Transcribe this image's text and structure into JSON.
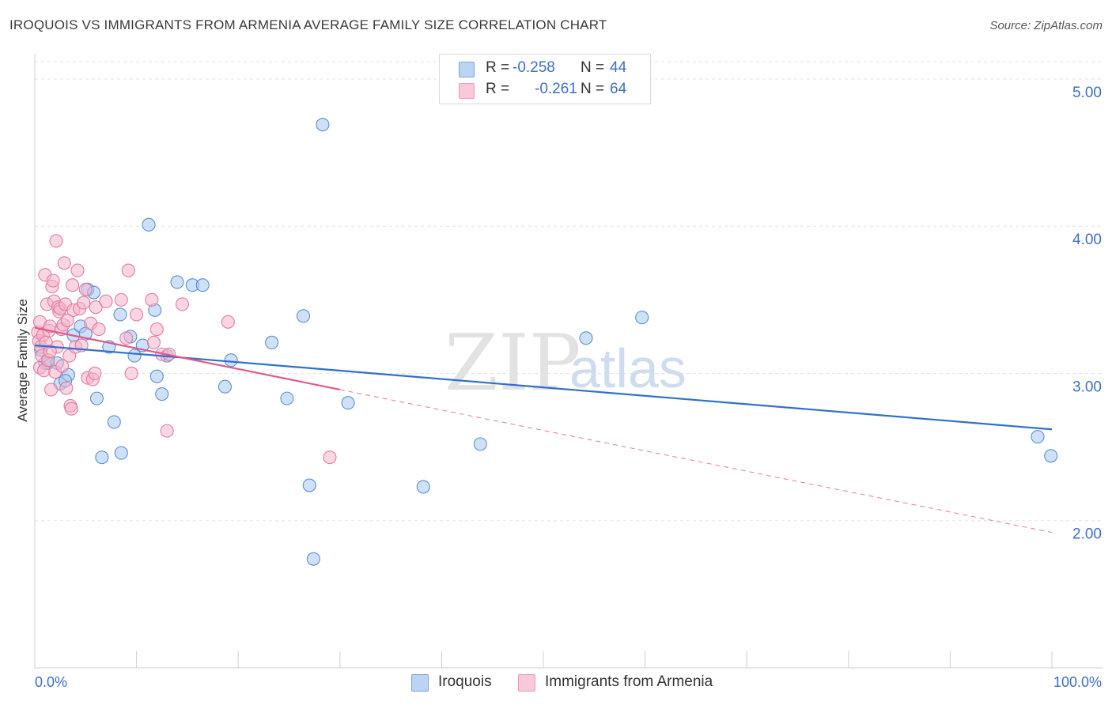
{
  "header": {
    "title": "IROQUOIS VS IMMIGRANTS FROM ARMENIA AVERAGE FAMILY SIZE CORRELATION CHART",
    "source": "Source: ZipAtlas.com"
  },
  "watermark": {
    "zip": "ZIP",
    "atlas": "atlas"
  },
  "legend": {
    "rows": [
      {
        "r_label": "R =",
        "r_value": "-0.258",
        "n_label": "N =",
        "n_value": "44"
      },
      {
        "r_label": "R =",
        "r_value": "-0.261",
        "n_label": "N =",
        "n_value": "64"
      }
    ]
  },
  "colors": {
    "iroquois_fill": "#a8c8f0",
    "iroquois_stroke": "#5b8fd6",
    "iroquois_line": "#2f6fcf",
    "armenia_fill": "#f6b5cb",
    "armenia_stroke": "#e27ca0",
    "armenia_line": "#e0588a",
    "tick_text": "#3d6fc4"
  },
  "chart_data": {
    "type": "scatter",
    "title": "IROQUOIS VS IMMIGRANTS FROM ARMENIA AVERAGE FAMILY SIZE CORRELATION CHART",
    "xlabel": "",
    "ylabel": "Average Family Size",
    "xlim": [
      0,
      100
    ],
    "ylim": [
      1.0,
      5.15
    ],
    "x_tick_labels": [
      "0.0%",
      "100.0%"
    ],
    "y_ticks": [
      2.0,
      3.0,
      4.0,
      5.0
    ],
    "y_tick_labels": [
      "2.00",
      "3.00",
      "4.00",
      "5.00"
    ],
    "grid": "horizontal dashed",
    "legend_position": "top-center and bottom",
    "series": [
      {
        "name": "Iroquois",
        "R": -0.258,
        "N": 44,
        "trend": {
          "x": [
            0,
            100
          ],
          "y": [
            3.19,
            2.62
          ]
        },
        "points": [
          [
            0.6,
            3.16
          ],
          [
            1.0,
            3.07
          ],
          [
            1.3,
            3.07
          ],
          [
            2.2,
            3.07
          ],
          [
            2.5,
            2.93
          ],
          [
            3.3,
            2.99
          ],
          [
            3.8,
            3.26
          ],
          [
            4.5,
            3.32
          ],
          [
            5.0,
            3.27
          ],
          [
            5.2,
            3.57
          ],
          [
            5.8,
            3.55
          ],
          [
            6.1,
            2.83
          ],
          [
            6.6,
            2.43
          ],
          [
            7.3,
            3.18
          ],
          [
            7.8,
            2.67
          ],
          [
            8.4,
            3.4
          ],
          [
            8.5,
            2.46
          ],
          [
            9.4,
            3.25
          ],
          [
            9.8,
            3.12
          ],
          [
            10.6,
            3.19
          ],
          [
            11.2,
            4.01
          ],
          [
            11.8,
            3.43
          ],
          [
            12.0,
            2.98
          ],
          [
            12.5,
            2.86
          ],
          [
            13.0,
            3.12
          ],
          [
            14.0,
            3.62
          ],
          [
            15.5,
            3.6
          ],
          [
            16.5,
            3.6
          ],
          [
            18.7,
            2.91
          ],
          [
            19.3,
            3.09
          ],
          [
            23.3,
            3.21
          ],
          [
            24.8,
            2.83
          ],
          [
            26.4,
            3.39
          ],
          [
            27.0,
            2.24
          ],
          [
            27.4,
            1.74
          ],
          [
            28.3,
            4.69
          ],
          [
            30.8,
            2.8
          ],
          [
            38.2,
            2.23
          ],
          [
            43.8,
            2.52
          ],
          [
            54.2,
            3.24
          ],
          [
            59.7,
            3.38
          ],
          [
            98.6,
            2.57
          ],
          [
            99.9,
            2.44
          ],
          [
            3.0,
            2.95
          ]
        ]
      },
      {
        "name": "Immigrants from Armenia",
        "R": -0.261,
        "N": 64,
        "trend": {
          "x": [
            0,
            30
          ],
          "y": [
            3.31,
            2.89
          ]
        },
        "trend_extended": {
          "x": [
            30,
            100
          ],
          "y": [
            2.89,
            1.92
          ]
        },
        "points": [
          [
            0.3,
            3.28
          ],
          [
            0.4,
            3.22
          ],
          [
            0.5,
            3.35
          ],
          [
            0.5,
            3.04
          ],
          [
            0.6,
            3.18
          ],
          [
            0.7,
            3.12
          ],
          [
            0.8,
            3.26
          ],
          [
            0.9,
            3.02
          ],
          [
            1.0,
            3.67
          ],
          [
            1.1,
            3.21
          ],
          [
            1.2,
            3.47
          ],
          [
            1.3,
            3.09
          ],
          [
            1.4,
            3.29
          ],
          [
            1.5,
            3.32
          ],
          [
            1.6,
            2.89
          ],
          [
            1.7,
            3.59
          ],
          [
            1.8,
            3.63
          ],
          [
            1.9,
            3.49
          ],
          [
            2.0,
            3.01
          ],
          [
            2.1,
            3.9
          ],
          [
            2.2,
            3.18
          ],
          [
            2.3,
            3.45
          ],
          [
            2.4,
            3.42
          ],
          [
            2.5,
            3.44
          ],
          [
            2.6,
            3.3
          ],
          [
            2.7,
            3.05
          ],
          [
            2.8,
            3.33
          ],
          [
            2.9,
            3.75
          ],
          [
            3.0,
            3.47
          ],
          [
            3.1,
            2.9
          ],
          [
            3.2,
            3.36
          ],
          [
            3.4,
            3.12
          ],
          [
            3.5,
            2.78
          ],
          [
            3.6,
            2.76
          ],
          [
            3.7,
            3.6
          ],
          [
            3.8,
            3.43
          ],
          [
            4.0,
            3.18
          ],
          [
            4.2,
            3.7
          ],
          [
            4.4,
            3.44
          ],
          [
            4.6,
            3.19
          ],
          [
            4.8,
            3.48
          ],
          [
            5.0,
            3.57
          ],
          [
            5.2,
            2.97
          ],
          [
            5.5,
            3.34
          ],
          [
            5.7,
            2.96
          ],
          [
            5.9,
            3.0
          ],
          [
            6.0,
            3.45
          ],
          [
            7.0,
            3.49
          ],
          [
            8.5,
            3.5
          ],
          [
            9.0,
            3.24
          ],
          [
            9.2,
            3.7
          ],
          [
            9.5,
            3.0
          ],
          [
            10.0,
            3.4
          ],
          [
            11.5,
            3.5
          ],
          [
            11.7,
            3.21
          ],
          [
            12.0,
            3.3
          ],
          [
            12.5,
            3.13
          ],
          [
            13.0,
            2.61
          ],
          [
            14.5,
            3.47
          ],
          [
            19.0,
            3.35
          ],
          [
            29.0,
            2.43
          ],
          [
            13.2,
            3.13
          ],
          [
            6.3,
            3.3
          ],
          [
            1.5,
            3.15
          ]
        ]
      }
    ]
  },
  "bottom_legend": {
    "items": [
      {
        "label": "Iroquois"
      },
      {
        "label": "Immigrants from Armenia"
      }
    ]
  }
}
